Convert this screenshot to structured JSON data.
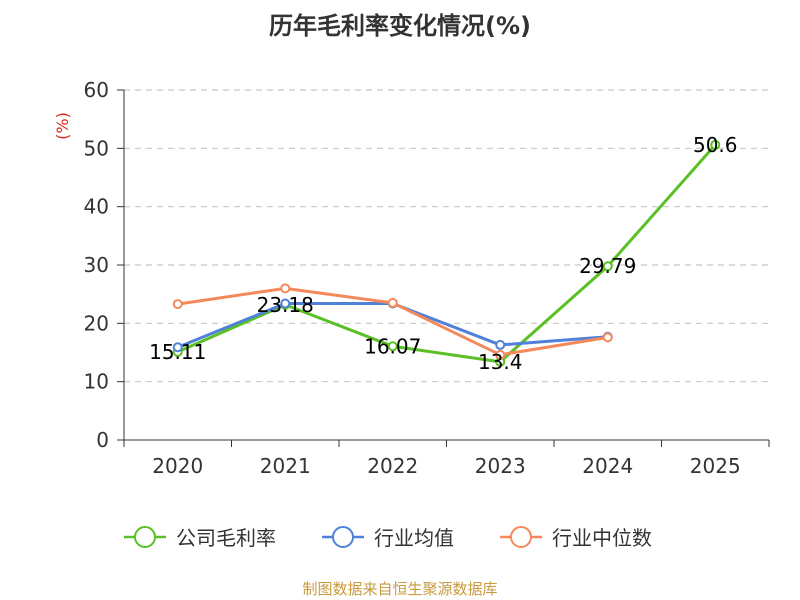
{
  "chart_data": {
    "type": "line",
    "title": "历年毛利率变化情况(%)",
    "ylabel": "(%)",
    "xlabel": "",
    "categories": [
      "2020",
      "2021",
      "2022",
      "2023",
      "2024",
      "2025"
    ],
    "y_ticks": [
      "0",
      "10",
      "20",
      "30",
      "40",
      "50",
      "60"
    ],
    "ylim": [
      0,
      60
    ],
    "grid": true,
    "legend_position": "bottom",
    "series": [
      {
        "name": "公司毛利率",
        "color": "#5ac026",
        "values": [
          15.11,
          23.18,
          16.07,
          13.4,
          29.79,
          50.6
        ],
        "labels": [
          "15.11",
          "23.18",
          "16.07",
          "13.4",
          "29.79",
          "50.6"
        ]
      },
      {
        "name": "行业均值",
        "color": "#4f81d9",
        "values": [
          15.9,
          23.4,
          23.4,
          16.3,
          17.7,
          null
        ]
      },
      {
        "name": "行业中位数",
        "color": "#f5895a",
        "values": [
          23.3,
          26.0,
          23.5,
          14.6,
          17.6,
          null
        ]
      }
    ],
    "ylabel_color": "#e0261b"
  },
  "footer": {
    "source": "制图数据来自恒生聚源数据库",
    "color": "#c99a3e"
  }
}
